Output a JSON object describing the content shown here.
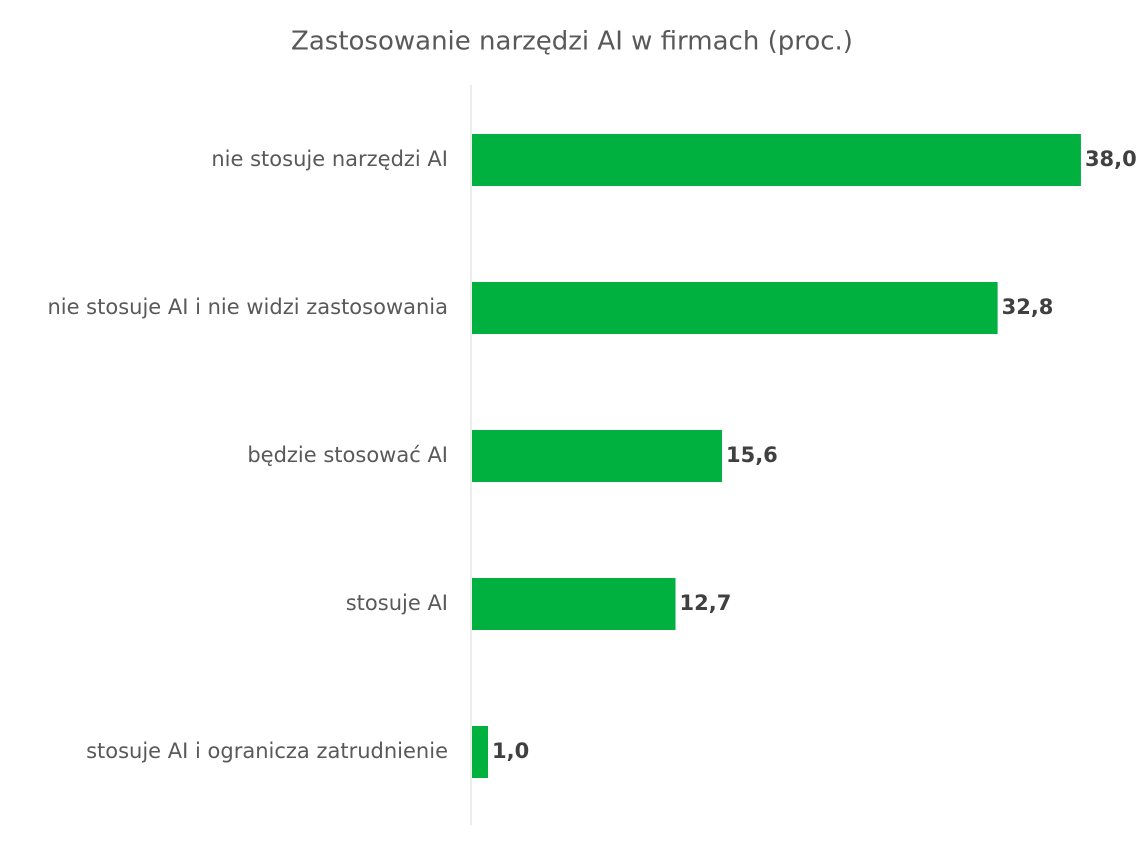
{
  "chart_data": {
    "type": "hbar",
    "title": "Zastosowanie narzędzi AI w firmach (proc.)",
    "categories": [
      "nie stosuje narzędzi AI",
      "nie stosuje AI i nie widzi zastosowania",
      "będzie stosować AI",
      "stosuje AI",
      "stosuje AI i ogranicza zatrudnienie"
    ],
    "values": [
      38.0,
      32.8,
      15.6,
      12.7,
      1.0
    ],
    "value_labels": [
      "38,0",
      "32,8",
      "15,6",
      "12,7",
      "1,0"
    ],
    "color": "#00b140",
    "xlim": [
      0,
      40
    ]
  }
}
